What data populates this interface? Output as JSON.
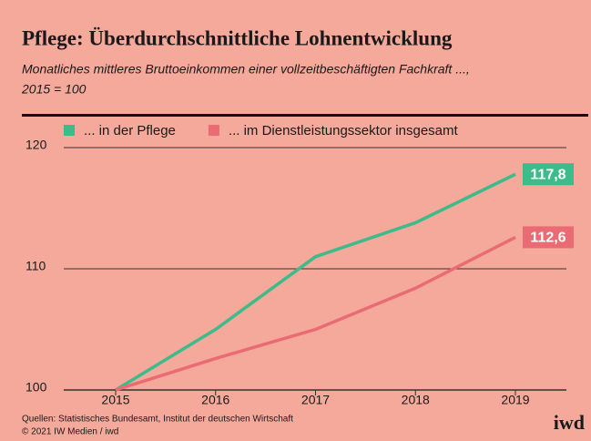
{
  "chart_data": {
    "type": "line",
    "title": "Pflege: Überdurchschnittliche Lohnentwicklung",
    "subtitle": [
      "Monatliches mittleres Bruttoeinkommen einer vollzeitbeschäftigten Fachkraft ...,",
      "2015 = 100"
    ],
    "categories": [
      "2015",
      "2016",
      "2017",
      "2018",
      "2019"
    ],
    "series": [
      {
        "name": "... in der Pflege",
        "color": "#3dbb8a",
        "values": [
          100,
          105,
          111,
          113.8,
          117.8
        ],
        "end_label": "117,8"
      },
      {
        "name": "... im Dienstleistungssektor insgesamt",
        "color": "#ea6b74",
        "values": [
          100,
          102.6,
          105,
          108.4,
          112.6
        ],
        "end_label": "112,6"
      }
    ],
    "ylim": [
      100,
      120
    ],
    "yticks": [
      100,
      110,
      120
    ],
    "grid": true,
    "source": "Quellen: Statistisches Bundesamt, Institut der deutschen Wirtschaft",
    "copyright": "© 2021 IW Medien / iwd",
    "logo": "iwd"
  }
}
